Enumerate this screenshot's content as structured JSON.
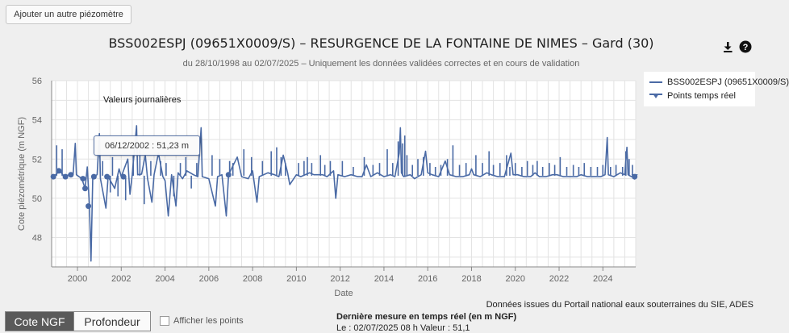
{
  "add_button": "Ajouter un autre piézomètre",
  "chart": {
    "title": "BSS002ESPJ (09651X0009/S) – RESURGENCE DE LA FONTAINE DE NIMES – Gard (30)",
    "subtitle": "du 28/10/1998 au 02/07/2025 – Uniquement les données validées correctes et en cours de validation",
    "annotation": "Valeurs journalières"
  },
  "legend": {
    "series_label": "BSS002ESPJ (09651X0009/S)",
    "points_label": "Points temps réel"
  },
  "tooltip": "06/12/2002 : 51,23 m",
  "source_text": "Données issues du Portail national eaux souterraines du SIE, ADES",
  "toggle": {
    "cote": "Cote NGF",
    "profondeur": "Profondeur"
  },
  "checkbox_label": "Afficher les points",
  "last_measure": {
    "label": "Dernière mesure en temps réel (en m NGF)",
    "value": "Le : 02/07/2025 08 h Valeur : 51,1"
  },
  "colors": {
    "series": "#4a6aa5",
    "grid": "#e3e3e3",
    "axis": "#888888"
  },
  "icons": {
    "download": "download-icon",
    "help": "help-icon"
  },
  "chart_data": {
    "type": "line",
    "xlabel": "Date",
    "ylabel": "Cote piézométrique (m NGF)",
    "xlim": [
      1998.82,
      2025.5
    ],
    "ylim": [
      46.5,
      56
    ],
    "x_ticks": [
      2000,
      2002,
      2004,
      2006,
      2008,
      2010,
      2012,
      2014,
      2016,
      2018,
      2020,
      2022,
      2024
    ],
    "y_ticks": [
      48,
      50,
      52,
      54,
      56
    ],
    "series": [
      {
        "name": "BSS002ESPJ (09651X0009/S)",
        "points": [
          [
            1998.82,
            51.1
          ],
          [
            1999.0,
            51.2
          ],
          [
            1999.2,
            51.4
          ],
          [
            1999.4,
            51.1
          ],
          [
            1999.6,
            51.2
          ],
          [
            1999.8,
            51.2
          ],
          [
            1999.9,
            52.8
          ],
          [
            1999.95,
            51.2
          ],
          [
            2000.2,
            51.0
          ],
          [
            2000.35,
            50.5
          ],
          [
            2000.45,
            51.6
          ],
          [
            2000.55,
            49.6
          ],
          [
            2000.62,
            46.8
          ],
          [
            2000.7,
            51.1
          ],
          [
            2000.9,
            51.2
          ],
          [
            2001.0,
            53.3
          ],
          [
            2001.05,
            51.0
          ],
          [
            2001.3,
            49.5
          ],
          [
            2001.4,
            51.1
          ],
          [
            2001.7,
            50.5
          ],
          [
            2001.9,
            51.5
          ],
          [
            2002.0,
            51.1
          ],
          [
            2002.3,
            52.0
          ],
          [
            2002.4,
            50.2
          ],
          [
            2002.5,
            51.2
          ],
          [
            2002.7,
            53.7
          ],
          [
            2002.75,
            51.2
          ],
          [
            2002.93,
            51.23
          ],
          [
            2003.1,
            52.2
          ],
          [
            2003.2,
            51.0
          ],
          [
            2003.4,
            49.8
          ],
          [
            2003.5,
            51.2
          ],
          [
            2003.7,
            52.3
          ],
          [
            2003.9,
            51.1
          ],
          [
            2004.0,
            50.9
          ],
          [
            2004.15,
            49.1
          ],
          [
            2004.3,
            51.2
          ],
          [
            2004.5,
            49.6
          ],
          [
            2004.6,
            51.3
          ],
          [
            2004.8,
            51.0
          ],
          [
            2005.0,
            51.4
          ],
          [
            2005.3,
            51.2
          ],
          [
            2005.5,
            51.1
          ],
          [
            2005.65,
            53.6
          ],
          [
            2005.7,
            51.1
          ],
          [
            2006.0,
            51.0
          ],
          [
            2006.3,
            49.6
          ],
          [
            2006.4,
            51.1
          ],
          [
            2006.6,
            51.2
          ],
          [
            2006.8,
            49.1
          ],
          [
            2006.9,
            51.2
          ],
          [
            2007.3,
            52.1
          ],
          [
            2007.5,
            51.1
          ],
          [
            2007.8,
            51.0
          ],
          [
            2008.0,
            51.4
          ],
          [
            2008.2,
            49.8
          ],
          [
            2008.3,
            51.1
          ],
          [
            2008.7,
            51.3
          ],
          [
            2009.0,
            51.2
          ],
          [
            2009.2,
            51.1
          ],
          [
            2009.4,
            52.2
          ],
          [
            2009.6,
            51.3
          ],
          [
            2009.7,
            50.7
          ],
          [
            2010.0,
            51.2
          ],
          [
            2010.2,
            51.1
          ],
          [
            2010.6,
            51.3
          ],
          [
            2010.8,
            51.2
          ],
          [
            2011.0,
            51.2
          ],
          [
            2011.2,
            51.2
          ],
          [
            2011.4,
            51.1
          ],
          [
            2011.7,
            51.4
          ],
          [
            2011.8,
            50.0
          ],
          [
            2011.9,
            51.2
          ],
          [
            2012.2,
            51.1
          ],
          [
            2012.5,
            51.2
          ],
          [
            2012.8,
            51.1
          ],
          [
            2013.0,
            51.1
          ],
          [
            2013.2,
            51.7
          ],
          [
            2013.4,
            51.1
          ],
          [
            2013.7,
            51.3
          ],
          [
            2014.0,
            51.1
          ],
          [
            2014.3,
            51.2
          ],
          [
            2014.5,
            51.1
          ],
          [
            2014.7,
            52.3
          ],
          [
            2014.75,
            53.6
          ],
          [
            2014.8,
            51.3
          ],
          [
            2014.9,
            51.1
          ],
          [
            2015.2,
            51.2
          ],
          [
            2015.4,
            51.0
          ],
          [
            2015.7,
            51.2
          ],
          [
            2015.9,
            52.4
          ],
          [
            2016.0,
            51.3
          ],
          [
            2016.2,
            51.2
          ],
          [
            2016.5,
            51.1
          ],
          [
            2016.8,
            51.9
          ],
          [
            2017.0,
            51.2
          ],
          [
            2017.3,
            51.1
          ],
          [
            2017.6,
            51.1
          ],
          [
            2017.9,
            51.2
          ],
          [
            2018.0,
            51.5
          ],
          [
            2018.1,
            51.2
          ],
          [
            2018.4,
            51.1
          ],
          [
            2018.7,
            51.3
          ],
          [
            2018.9,
            51.2
          ],
          [
            2019.2,
            51.1
          ],
          [
            2019.5,
            51.1
          ],
          [
            2019.8,
            52.3
          ],
          [
            2019.9,
            51.2
          ],
          [
            2020.1,
            51.2
          ],
          [
            2020.4,
            51.1
          ],
          [
            2020.7,
            51.1
          ],
          [
            2020.9,
            51.3
          ],
          [
            2021.1,
            51.1
          ],
          [
            2021.4,
            51.1
          ],
          [
            2021.7,
            51.2
          ],
          [
            2021.9,
            51.2
          ],
          [
            2022.2,
            51.1
          ],
          [
            2022.5,
            51.1
          ],
          [
            2022.8,
            51.1
          ],
          [
            2023.0,
            51.2
          ],
          [
            2023.3,
            51.1
          ],
          [
            2023.6,
            51.1
          ],
          [
            2023.9,
            51.1
          ],
          [
            2024.1,
            51.2
          ],
          [
            2024.2,
            53.1
          ],
          [
            2024.25,
            51.2
          ],
          [
            2024.5,
            51.1
          ],
          [
            2024.8,
            51.3
          ],
          [
            2025.0,
            51.2
          ],
          [
            2025.1,
            52.6
          ],
          [
            2025.15,
            51.2
          ],
          [
            2025.3,
            51.1
          ],
          [
            2025.5,
            51.1
          ]
        ],
        "spikes": [
          [
            1999.05,
            52.7
          ],
          [
            1999.3,
            52.5
          ],
          [
            2001.15,
            51.9
          ],
          [
            2001.5,
            50.3
          ],
          [
            2001.6,
            52.1
          ],
          [
            2001.85,
            50.1
          ],
          [
            2002.2,
            49.9
          ],
          [
            2002.55,
            52.2
          ],
          [
            2002.85,
            52.6
          ],
          [
            2003.05,
            49.7
          ],
          [
            2003.35,
            51.9
          ],
          [
            2003.8,
            51.9
          ],
          [
            2004.05,
            51.8
          ],
          [
            2004.4,
            50.1
          ],
          [
            2004.7,
            51.8
          ],
          [
            2004.95,
            52.1
          ],
          [
            2005.2,
            50.5
          ],
          [
            2005.45,
            51.8
          ],
          [
            2006.15,
            52.2
          ],
          [
            2006.5,
            52.0
          ],
          [
            2006.95,
            51.9
          ],
          [
            2007.1,
            51.8
          ],
          [
            2007.6,
            52.5
          ],
          [
            2007.95,
            52.1
          ],
          [
            2008.45,
            51.9
          ],
          [
            2008.85,
            52.4
          ],
          [
            2009.1,
            52.6
          ],
          [
            2009.3,
            52.1
          ],
          [
            2009.5,
            51.8
          ],
          [
            2010.1,
            51.8
          ],
          [
            2010.35,
            51.9
          ],
          [
            2010.5,
            52.1
          ],
          [
            2010.7,
            51.8
          ],
          [
            2011.1,
            52.2
          ],
          [
            2011.3,
            51.7
          ],
          [
            2011.55,
            51.9
          ],
          [
            2012.1,
            51.9
          ],
          [
            2012.6,
            51.6
          ],
          [
            2013.1,
            52.1
          ],
          [
            2013.5,
            51.7
          ],
          [
            2013.8,
            51.8
          ],
          [
            2014.15,
            52.5
          ],
          [
            2014.4,
            51.8
          ],
          [
            2014.65,
            52.9
          ],
          [
            2014.85,
            52.8
          ],
          [
            2014.95,
            53.2
          ],
          [
            2015.05,
            52.2
          ],
          [
            2015.3,
            51.7
          ],
          [
            2015.55,
            52.0
          ],
          [
            2015.8,
            52.1
          ],
          [
            2016.1,
            51.8
          ],
          [
            2016.35,
            51.6
          ],
          [
            2016.6,
            51.7
          ],
          [
            2016.9,
            52.0
          ],
          [
            2017.15,
            52.7
          ],
          [
            2017.45,
            51.7
          ],
          [
            2017.75,
            51.8
          ],
          [
            2018.2,
            52.2
          ],
          [
            2018.5,
            51.8
          ],
          [
            2018.8,
            52.4
          ],
          [
            2019.0,
            51.7
          ],
          [
            2019.3,
            51.8
          ],
          [
            2019.6,
            52.2
          ],
          [
            2019.75,
            51.6
          ],
          [
            2020.0,
            51.8
          ],
          [
            2020.3,
            51.6
          ],
          [
            2020.55,
            51.9
          ],
          [
            2020.8,
            51.7
          ],
          [
            2021.0,
            51.9
          ],
          [
            2021.25,
            51.6
          ],
          [
            2021.55,
            51.8
          ],
          [
            2021.8,
            51.7
          ],
          [
            2022.05,
            52.1
          ],
          [
            2022.35,
            51.6
          ],
          [
            2022.65,
            51.7
          ],
          [
            2022.9,
            51.6
          ],
          [
            2023.15,
            51.8
          ],
          [
            2023.45,
            51.6
          ],
          [
            2023.75,
            51.6
          ],
          [
            2024.0,
            51.7
          ],
          [
            2024.35,
            51.6
          ],
          [
            2024.6,
            51.7
          ],
          [
            2024.9,
            51.6
          ],
          [
            2025.05,
            52.4
          ],
          [
            2025.2,
            52.0
          ],
          [
            2025.35,
            51.7
          ]
        ]
      },
      {
        "name": "Points temps réel",
        "points": [
          [
            1998.9,
            51.1
          ],
          [
            1999.15,
            51.4
          ],
          [
            1999.45,
            51.1
          ],
          [
            1999.7,
            51.2
          ],
          [
            2000.25,
            51.0
          ],
          [
            2000.35,
            50.5
          ],
          [
            2000.5,
            49.6
          ],
          [
            2000.75,
            51.1
          ],
          [
            2001.35,
            51.1
          ],
          [
            2002.1,
            51.1
          ],
          [
            2006.9,
            51.2
          ],
          [
            2025.45,
            51.1
          ]
        ]
      }
    ]
  }
}
